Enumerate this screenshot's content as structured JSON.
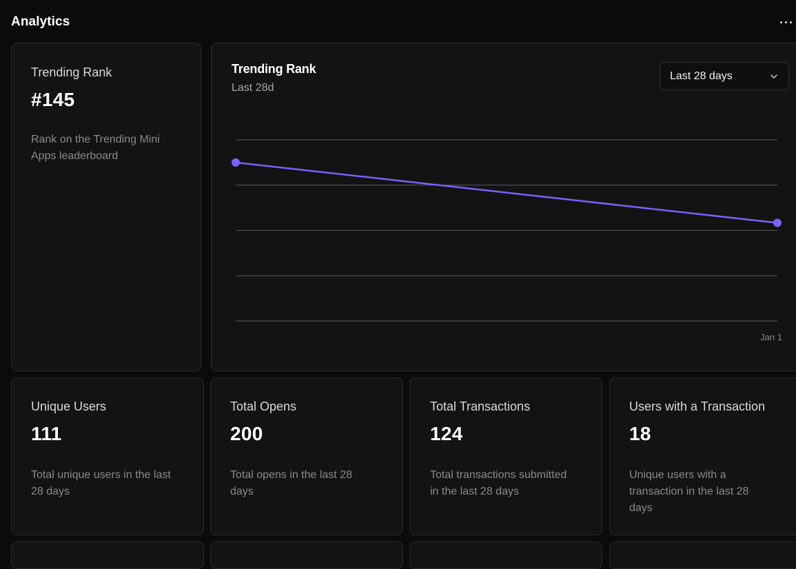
{
  "page": {
    "title": "Analytics"
  },
  "rank_card": {
    "label": "Trending Rank",
    "value": "#145",
    "description_line1": "Rank on the Trending Mini",
    "description_line2": "Apps leaderboard"
  },
  "chart_card": {
    "title": "Trending Rank",
    "subtitle": "Last 28d",
    "range_select": {
      "selected": "Last 28 days",
      "icon": "chevron-down-icon"
    }
  },
  "chart_data": {
    "type": "line",
    "title": "Trending Rank",
    "subtitle": "Last 28d",
    "x_tick_labels": [
      "Jan 1"
    ],
    "series": [
      {
        "color": "#7b61ff",
        "points": [
          {
            "x": "start",
            "y_relative": 0.125
          },
          {
            "x": "Jan 1",
            "y_relative": 0.458
          }
        ]
      }
    ],
    "grid": true,
    "gridline_count": 5,
    "colors": {
      "line": "#7b61ff",
      "grid": "#5a5a5a"
    }
  },
  "stats": [
    {
      "label": "Unique Users",
      "value": "111",
      "description_lines": [
        "Total unique users in the last",
        "28 days"
      ]
    },
    {
      "label": "Total Opens",
      "value": "200",
      "description_lines": [
        "Total opens in the last 28",
        "days"
      ]
    },
    {
      "label": "Total Transactions",
      "value": "124",
      "description_lines": [
        "Total transactions submitted",
        "in the last 28 days"
      ]
    },
    {
      "label": "Users with a Transaction",
      "value": "18",
      "description_lines": [
        "Unique users with a",
        "transaction in the last 28",
        "days"
      ]
    }
  ],
  "theme": {
    "background": "#0b0b0b",
    "card_background": "#131313",
    "card_border": "#2b2b2b",
    "accent": "#7b61ff"
  }
}
